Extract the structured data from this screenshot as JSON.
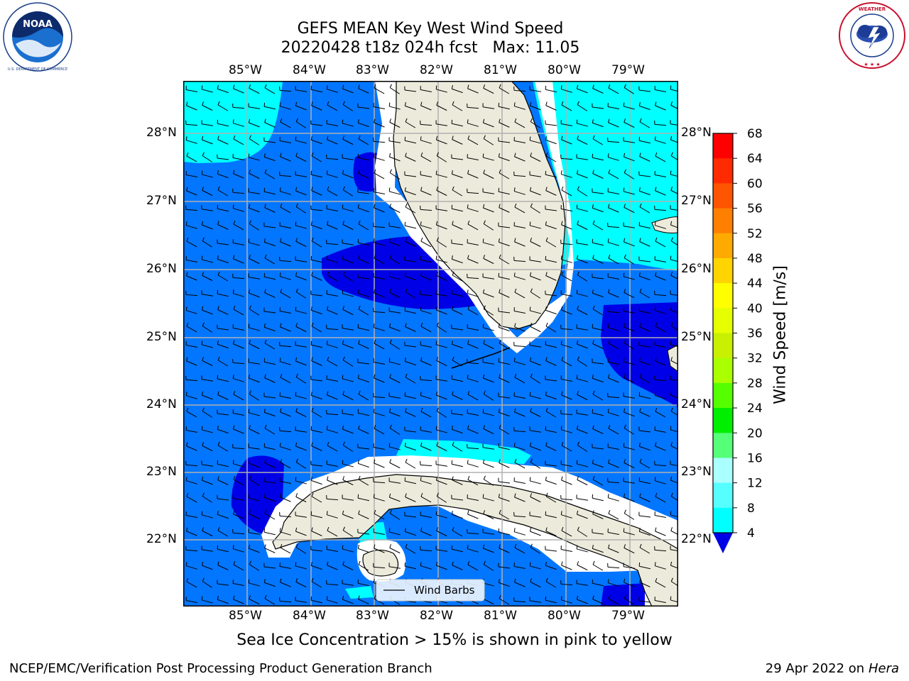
{
  "header": {
    "title_line1": "GEFS MEAN Key West Wind Speed",
    "title_line2": "20220428 t18z 024h fcst   Max: 11.05"
  },
  "logos": {
    "left": {
      "text": "NOAA",
      "ring_text": "NATIONAL OCEANIC AND ATMOSPHERIC ADMINISTRATION • U.S. DEPARTMENT OF COMMERCE"
    },
    "right": {
      "ring_text": "NATIONAL WEATHER SERVICE"
    }
  },
  "map": {
    "lon_labels": [
      "85°W",
      "84°W",
      "83°W",
      "82°W",
      "81°W",
      "80°W",
      "79°W"
    ],
    "lat_labels": [
      "28°N",
      "27°N",
      "26°N",
      "25°N",
      "24°N",
      "23°N",
      "22°N"
    ],
    "legend_label": "Wind Barbs",
    "colors": {
      "land": "#ecebdb",
      "band_4_8": "#0276ff",
      "band_8_12": "#00ffff",
      "below_4": "#0000e6"
    }
  },
  "colorbar": {
    "label": "Wind Speed [m/s]",
    "ticks": [
      "68",
      "64",
      "60",
      "56",
      "52",
      "48",
      "44",
      "40",
      "36",
      "32",
      "28",
      "24",
      "20",
      "16",
      "12",
      "8",
      "4"
    ],
    "colors": [
      "#ff0000",
      "#ff2a00",
      "#ff5500",
      "#ff7f00",
      "#ffaa00",
      "#ffd400",
      "#ffff00",
      "#e6ff00",
      "#c8f000",
      "#aaff00",
      "#55ff00",
      "#00ee00",
      "#55ff77",
      "#aaffff",
      "#55ffff",
      "#00ffff",
      "#0276ff"
    ],
    "extend_color": "#0000e6"
  },
  "notes": {
    "sea_ice": "Sea Ice Concentration > 15% is shown in pink to yellow",
    "branch": "NCEP/EMC/Verification Post Processing Product Generation Branch",
    "date": "29 Apr 2022 on",
    "host": "Hera"
  }
}
